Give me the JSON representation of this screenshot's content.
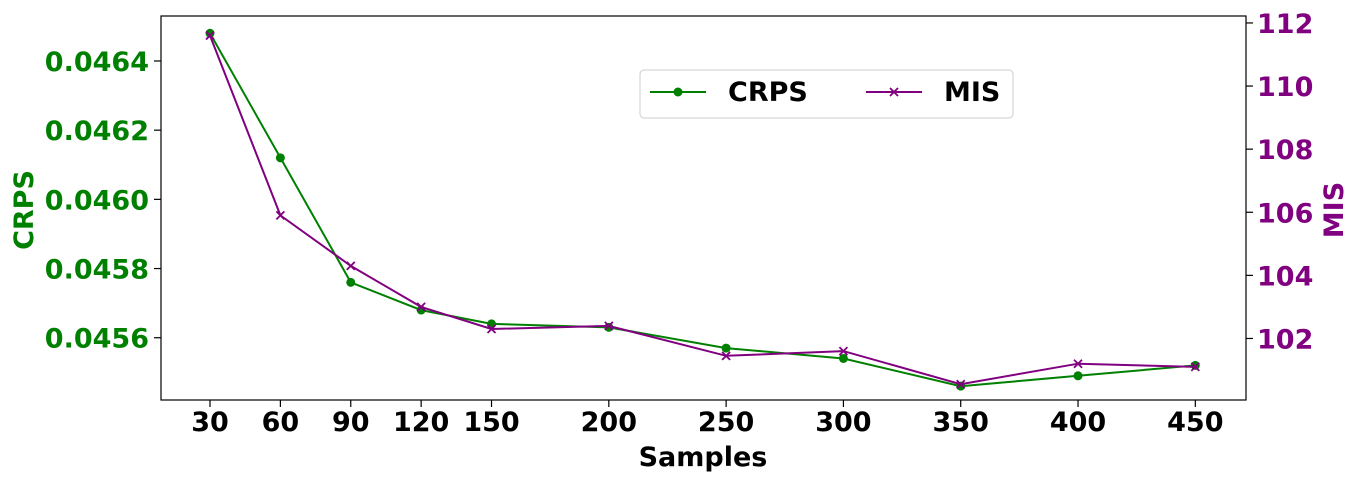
{
  "chart_data": {
    "type": "line",
    "xlabel": "Samples",
    "x": [
      30,
      60,
      90,
      120,
      150,
      200,
      250,
      300,
      350,
      400,
      450
    ],
    "x_ticks": [
      "30",
      "60",
      "90",
      "120",
      "150",
      "200",
      "250",
      "300",
      "350",
      "400",
      "450"
    ],
    "left_axis": {
      "label": "CRPS",
      "color": "#008000",
      "ylim": [
        0.04542,
        0.04653
      ],
      "ticks": [
        0.0456,
        0.0458,
        0.046,
        0.0462,
        0.0464
      ],
      "tick_labels": [
        "0.0456",
        "0.0458",
        "0.0460",
        "0.0462",
        "0.0464"
      ]
    },
    "right_axis": {
      "label": "MIS",
      "color": "#800080",
      "ylim": [
        100.05,
        112.22
      ],
      "ticks": [
        102,
        104,
        106,
        108,
        110,
        112
      ],
      "tick_labels": [
        "102",
        "104",
        "106",
        "108",
        "110",
        "112"
      ]
    },
    "series": [
      {
        "name": "CRPS",
        "axis": "left",
        "color": "#008000",
        "marker": "circle",
        "values": [
          0.04648,
          0.04612,
          0.04576,
          0.04568,
          0.04564,
          0.04563,
          0.04557,
          0.04554,
          0.04546,
          0.04549,
          0.04552
        ]
      },
      {
        "name": "MIS",
        "axis": "right",
        "color": "#800080",
        "marker": "x",
        "values": [
          111.6,
          105.9,
          104.3,
          103.0,
          102.3,
          102.4,
          101.45,
          101.6,
          100.55,
          101.2,
          101.1
        ]
      }
    ],
    "legend": {
      "position": "upper-right-center",
      "columns": 2,
      "entries": [
        "CRPS",
        "MIS"
      ]
    },
    "grid": false
  }
}
